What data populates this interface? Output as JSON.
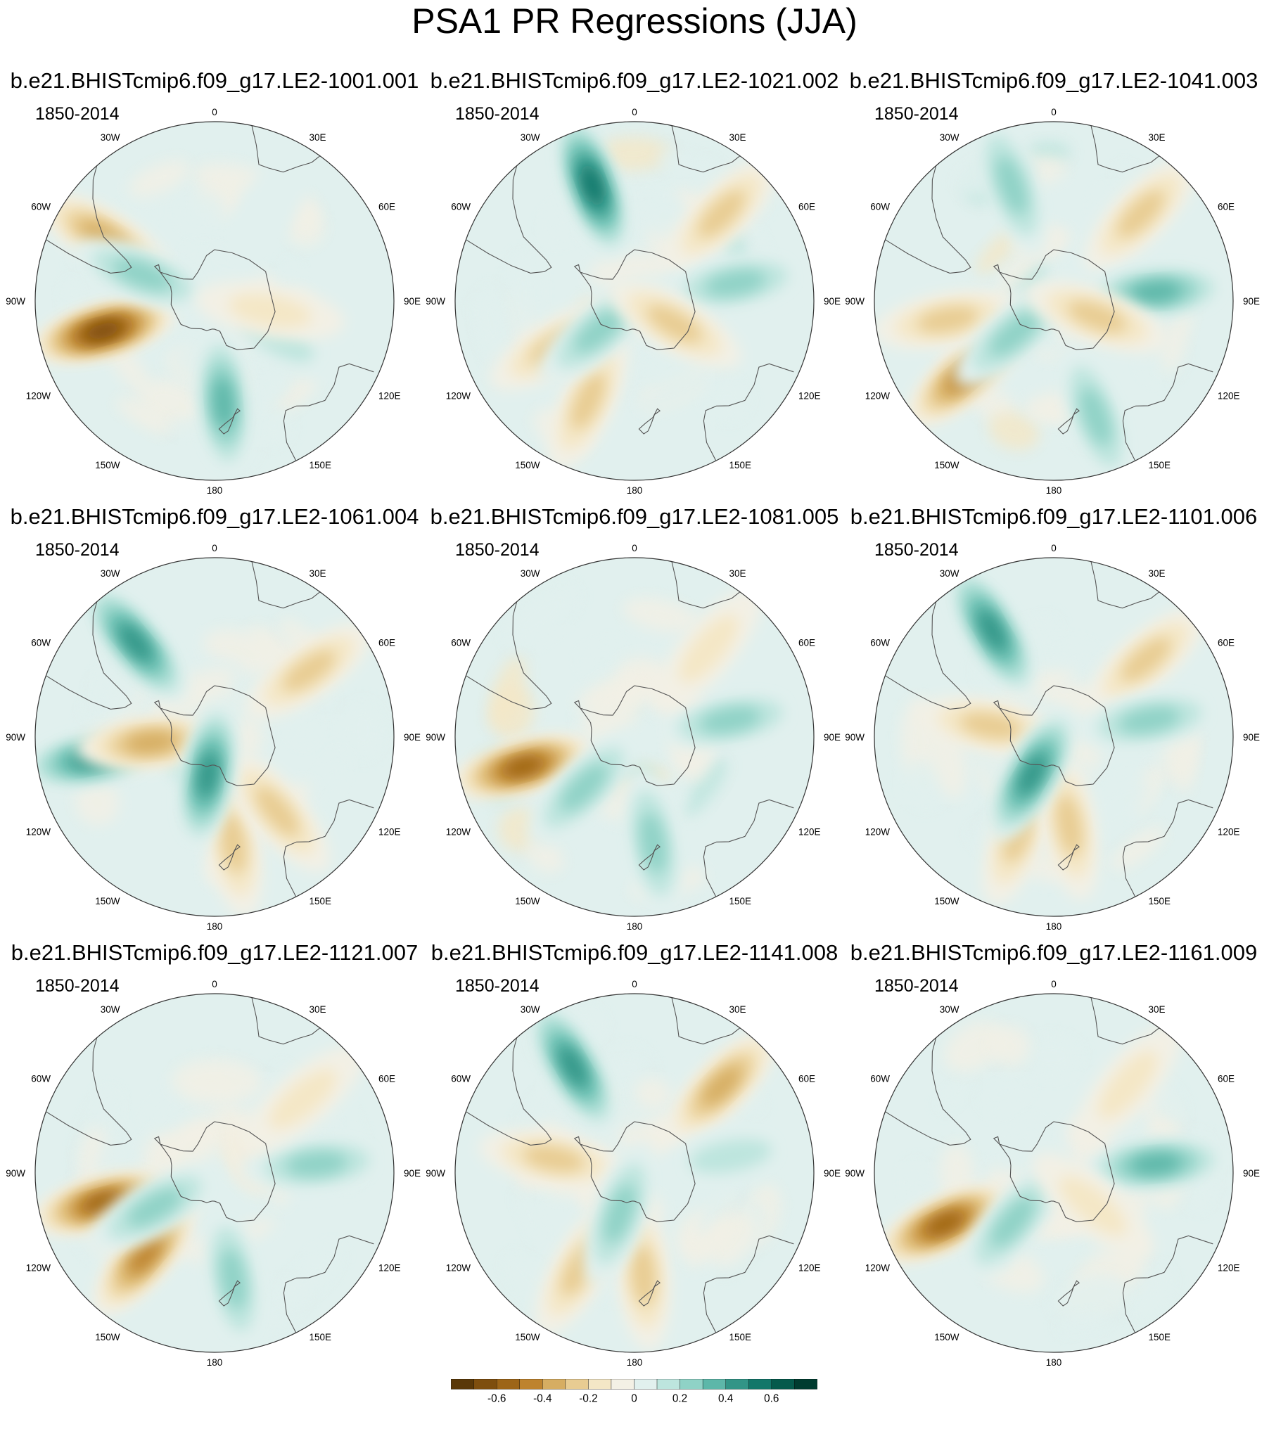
{
  "chart_data": {
    "type": "contour",
    "title": "PSA1 PR Regressions (JJA)",
    "projection": "south-polar-stereographic",
    "period": "1850-2014",
    "longitude_labels": [
      "0",
      "30E",
      "60E",
      "90E",
      "120E",
      "150E",
      "180",
      "150W",
      "120W",
      "90W",
      "60W",
      "30W"
    ],
    "colorbar": {
      "levels": [
        -0.7,
        -0.6,
        -0.5,
        -0.4,
        -0.3,
        -0.2,
        -0.1,
        0,
        0.1,
        0.2,
        0.3,
        0.4,
        0.5,
        0.6,
        0.7
      ],
      "colors": [
        "#5a3808",
        "#7e4e0e",
        "#9d6518",
        "#be832e",
        "#d6ad62",
        "#e8cc92",
        "#f4e7c6",
        "#f3f0e5",
        "#e1f0ee",
        "#bde5de",
        "#8fd2c6",
        "#5db7a9",
        "#329587",
        "#13776a",
        "#055a4c",
        "#003c30"
      ],
      "tick_labels": [
        {
          "value": -0.6,
          "label": "-0.6"
        },
        {
          "value": -0.4,
          "label": "-0.4"
        },
        {
          "value": -0.2,
          "label": "-0.2"
        },
        {
          "value": 0,
          "label": "0"
        },
        {
          "value": 0.2,
          "label": "0.2"
        },
        {
          "value": 0.4,
          "label": "0.4"
        },
        {
          "value": 0.6,
          "label": "0.6"
        }
      ]
    },
    "panels": [
      {
        "name": "b.e21.BHISTcmip6.f09_g17.LE2-1001.001",
        "anomalies": [
          {
            "lon": -105,
            "lat": -45,
            "v": -0.65
          },
          {
            "lon": -60,
            "lat": -40,
            "v": -0.4
          },
          {
            "lon": -70,
            "lat": -60,
            "v": 0.3
          },
          {
            "lon": 175,
            "lat": -50,
            "v": 0.4
          },
          {
            "lon": 120,
            "lat": -62,
            "v": 0.2
          },
          {
            "lon": 30,
            "lat": -45,
            "v": 0.15
          },
          {
            "lon": 100,
            "lat": -68,
            "v": -0.2
          }
        ]
      },
      {
        "name": "b.e21.BHISTcmip6.f09_g17.LE2-1021.002",
        "anomalies": [
          {
            "lon": -20,
            "lat": -42,
            "v": 0.55
          },
          {
            "lon": 45,
            "lat": -42,
            "v": -0.35
          },
          {
            "lon": 80,
            "lat": -50,
            "v": 0.25
          },
          {
            "lon": -155,
            "lat": -47,
            "v": -0.35
          },
          {
            "lon": -120,
            "lat": -55,
            "v": -0.3
          },
          {
            "lon": -130,
            "lat": -72,
            "v": 0.3
          },
          {
            "lon": 120,
            "lat": -72,
            "v": -0.25
          }
        ]
      },
      {
        "name": "b.e21.BHISTcmip6.f09_g17.LE2-1041.003",
        "anomalies": [
          {
            "lon": -20,
            "lat": -42,
            "v": 0.35
          },
          {
            "lon": 45,
            "lat": -42,
            "v": -0.3
          },
          {
            "lon": 85,
            "lat": -50,
            "v": 0.4
          },
          {
            "lon": -130,
            "lat": -45,
            "v": -0.45
          },
          {
            "lon": -100,
            "lat": -48,
            "v": -0.35
          },
          {
            "lon": -130,
            "lat": -70,
            "v": 0.35
          },
          {
            "lon": 160,
            "lat": -42,
            "v": 0.3
          },
          {
            "lon": 110,
            "lat": -72,
            "v": -0.3
          }
        ]
      },
      {
        "name": "b.e21.BHISTcmip6.f09_g17.LE2-1061.004",
        "anomalies": [
          {
            "lon": -40,
            "lat": -42,
            "v": 0.5
          },
          {
            "lon": -100,
            "lat": -42,
            "v": 0.5
          },
          {
            "lon": -95,
            "lat": -65,
            "v": -0.4
          },
          {
            "lon": 55,
            "lat": -45,
            "v": -0.3
          },
          {
            "lon": 170,
            "lat": -48,
            "v": -0.35
          },
          {
            "lon": 140,
            "lat": -52,
            "v": -0.3
          },
          {
            "lon": -170,
            "lat": -75,
            "v": 0.45
          }
        ]
      },
      {
        "name": "b.e21.BHISTcmip6.f09_g17.LE2-1081.005",
        "anomalies": [
          {
            "lon": -105,
            "lat": -45,
            "v": -0.6
          },
          {
            "lon": -135,
            "lat": -62,
            "v": 0.3
          },
          {
            "lon": 170,
            "lat": -48,
            "v": 0.35
          },
          {
            "lon": 80,
            "lat": -52,
            "v": 0.25
          },
          {
            "lon": 40,
            "lat": -45,
            "v": -0.2
          }
        ]
      },
      {
        "name": "b.e21.BHISTcmip6.f09_g17.LE2-1101.006",
        "anomalies": [
          {
            "lon": -30,
            "lat": -42,
            "v": 0.45
          },
          {
            "lon": 50,
            "lat": -43,
            "v": -0.35
          },
          {
            "lon": 80,
            "lat": -52,
            "v": 0.3
          },
          {
            "lon": -160,
            "lat": -50,
            "v": -0.35
          },
          {
            "lon": 170,
            "lat": -55,
            "v": -0.3
          },
          {
            "lon": -80,
            "lat": -65,
            "v": -0.3
          },
          {
            "lon": -150,
            "lat": -73,
            "v": 0.45
          }
        ]
      },
      {
        "name": "b.e21.BHISTcmip6.f09_g17.LE2-1121.007",
        "anomalies": [
          {
            "lon": -105,
            "lat": -45,
            "v": -0.55
          },
          {
            "lon": -140,
            "lat": -48,
            "v": -0.45
          },
          {
            "lon": -120,
            "lat": -63,
            "v": 0.3
          },
          {
            "lon": 170,
            "lat": -48,
            "v": 0.3
          },
          {
            "lon": 85,
            "lat": -50,
            "v": 0.25
          },
          {
            "lon": 50,
            "lat": -45,
            "v": -0.2
          }
        ]
      },
      {
        "name": "b.e21.BHISTcmip6.f09_g17.LE2-1141.008",
        "anomalies": [
          {
            "lon": -30,
            "lat": -42,
            "v": 0.45
          },
          {
            "lon": 45,
            "lat": -42,
            "v": -0.4
          },
          {
            "lon": 80,
            "lat": -52,
            "v": 0.2
          },
          {
            "lon": 175,
            "lat": -50,
            "v": -0.35
          },
          {
            "lon": -150,
            "lat": -47,
            "v": -0.3
          },
          {
            "lon": -80,
            "lat": -58,
            "v": -0.35
          },
          {
            "lon": -160,
            "lat": -73,
            "v": 0.35
          }
        ]
      },
      {
        "name": "b.e21.BHISTcmip6.f09_g17.LE2-1161.009",
        "anomalies": [
          {
            "lon": -115,
            "lat": -43,
            "v": -0.6
          },
          {
            "lon": 85,
            "lat": -50,
            "v": 0.4
          },
          {
            "lon": -140,
            "lat": -65,
            "v": 0.3
          },
          {
            "lon": 40,
            "lat": -45,
            "v": -0.2
          },
          {
            "lon": 130,
            "lat": -70,
            "v": -0.2
          }
        ]
      }
    ]
  }
}
